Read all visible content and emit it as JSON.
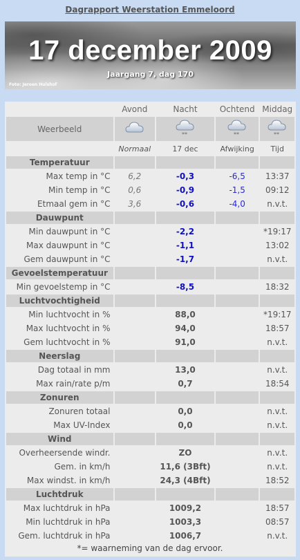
{
  "title": "Dagrapport Weerstation Emmeloord",
  "banner": {
    "date": "17 december 2009",
    "subtitle": "Jaargang 7, dag 170",
    "photo_credit": "Foto: Jeroen Hulshof"
  },
  "columns": {
    "avond": "Avond",
    "nacht": "Nacht",
    "ochtend": "Ochtend",
    "middag": "Middag"
  },
  "weerbeeld": {
    "label": "Weerbeeld",
    "icons": [
      "cloud-icon",
      "snow-cloud-icon",
      "snow-cloud-icon",
      "snow-cloud-icon"
    ]
  },
  "subheader": {
    "normaal": "Normaal",
    "date": "17 dec",
    "afwijking": "Afwijking",
    "tijd": "Tijd"
  },
  "sections": [
    {
      "name": "Temperatuur",
      "rows": [
        {
          "label": "Max temp in °C",
          "normal": "6,2",
          "value": "-0,3",
          "deviation": "-6,5",
          "time": "13:37"
        },
        {
          "label": "Min temp in °C",
          "normal": "0,6",
          "value": "-0,9",
          "deviation": "-1,5",
          "time": "09:12"
        },
        {
          "label": "Etmaal gem in °C",
          "normal": "3,6",
          "value": "-0,6",
          "deviation": "-4,0",
          "time": "n.v.t."
        }
      ]
    },
    {
      "name": "Dauwpunt",
      "rows": [
        {
          "label": "Min dauwpunt in °C",
          "normal": "",
          "value": "-2,2",
          "deviation": "",
          "time": "*19:17"
        },
        {
          "label": "Max dauwpunt in °C",
          "normal": "",
          "value": "-1,1",
          "deviation": "",
          "time": "13:02"
        },
        {
          "label": "Gem dauwpunt in °C",
          "normal": "",
          "value": "-1,7",
          "deviation": "",
          "time": "n.v.t."
        }
      ]
    },
    {
      "name": "Gevoelstemperatuur",
      "rows": [
        {
          "label": "Min gevoelstemp in °C",
          "normal": "",
          "value": "-8,5",
          "deviation": "",
          "time": "18:32"
        }
      ]
    },
    {
      "name": "Luchtvochtigheid",
      "rows": [
        {
          "label": "Min luchtvocht in %",
          "normal": "",
          "value": "88,0",
          "deviation": "",
          "time": "*19:17"
        },
        {
          "label": "Max luchtvocht in %",
          "normal": "",
          "value": "94,0",
          "deviation": "",
          "time": "18:57"
        },
        {
          "label": "Gem luchtvocht in %",
          "normal": "",
          "value": "91,0",
          "deviation": "",
          "time": "n.v.t."
        }
      ]
    },
    {
      "name": "Neerslag",
      "rows": [
        {
          "label": "Dag totaal in mm",
          "normal": "",
          "value": "13,0",
          "deviation": "",
          "time": "n.v.t."
        },
        {
          "label": "Max rain/rate p/m",
          "normal": "",
          "value": "0,7",
          "deviation": "",
          "time": "18:54"
        }
      ]
    },
    {
      "name": "Zonuren",
      "rows": [
        {
          "label": "Zonuren totaal",
          "normal": "",
          "value": "0,0",
          "deviation": "",
          "time": "n.v.t."
        },
        {
          "label": "Max UV-Index",
          "normal": "",
          "value": "0,0",
          "deviation": "",
          "time": "n.v.t."
        }
      ]
    },
    {
      "name": "Wind",
      "rows": [
        {
          "label": "Overheersende windr.",
          "normal": "",
          "value": "ZO",
          "deviation": "",
          "time": "n.v.t."
        },
        {
          "label": "Gem. in km/h",
          "normal": "",
          "value": "11,6 (3Bft)",
          "deviation": "",
          "time": "n.v.t."
        },
        {
          "label": "Max windst. in km/h",
          "normal": "",
          "value": "24,3 (4Bft)",
          "deviation": "",
          "time": "18:52"
        }
      ]
    },
    {
      "name": "Luchtdruk",
      "rows": [
        {
          "label": "Max luchtdruk in hPa",
          "normal": "",
          "value": "1009,2",
          "deviation": "",
          "time": "18:57"
        },
        {
          "label": "Min luchtdruk in hPa",
          "normal": "",
          "value": "1003,3",
          "deviation": "",
          "time": "08:57"
        },
        {
          "label": "Gem. luchtdruk in hPa",
          "normal": "",
          "value": "1006,7",
          "deviation": "",
          "time": "n.v.t."
        }
      ]
    }
  ],
  "footer": "*= waarneming van de dag ervoor."
}
